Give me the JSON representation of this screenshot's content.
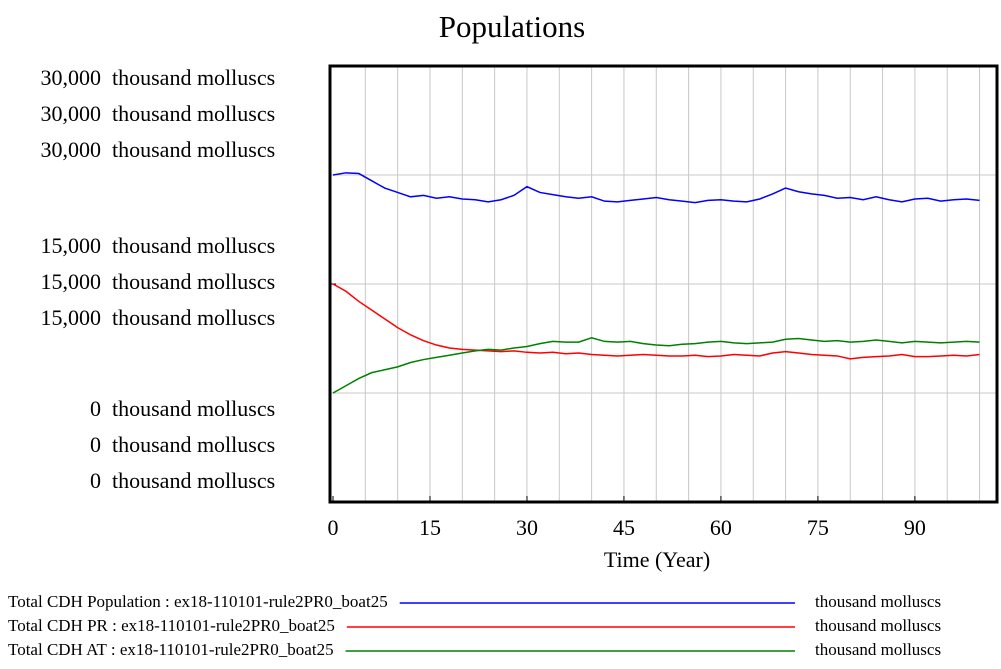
{
  "chart_data": {
    "type": "line",
    "title": "Populations",
    "x_label": "Time (Year)",
    "x": [
      0,
      2,
      4,
      6,
      8,
      10,
      12,
      14,
      16,
      18,
      20,
      22,
      24,
      26,
      28,
      30,
      32,
      34,
      36,
      38,
      40,
      42,
      44,
      46,
      48,
      50,
      52,
      54,
      56,
      58,
      60,
      62,
      64,
      66,
      68,
      70,
      72,
      74,
      76,
      78,
      80,
      82,
      84,
      86,
      88,
      90,
      92,
      94,
      96,
      98,
      100
    ],
    "xlim": [
      0,
      102.7
    ],
    "xticks": [
      0,
      15,
      30,
      45,
      60,
      75,
      90
    ],
    "xgrid": [
      5,
      10,
      15,
      20,
      25,
      30,
      35,
      40,
      45,
      50,
      55,
      60,
      65,
      70,
      75,
      80,
      85,
      90,
      95,
      100
    ],
    "ylim": [
      0,
      30000
    ],
    "yticks": [
      {
        "value": 30000,
        "label": "30,000"
      },
      {
        "value": 15000,
        "label": "15,000"
      },
      {
        "value": 0,
        "label": "0"
      }
    ],
    "ygrid": [
      7500,
      15000,
      22500
    ],
    "series": [
      {
        "name": "Total CDH Population : ex18-110101-rule2PR0_boat25",
        "unit": "thousand molluscs",
        "color": "#0000ff",
        "values": [
          22500,
          22650,
          22600,
          22100,
          21600,
          21300,
          21000,
          21100,
          20900,
          21000,
          20850,
          20800,
          20650,
          20800,
          21100,
          21700,
          21300,
          21150,
          21000,
          20900,
          21000,
          20700,
          20650,
          20750,
          20850,
          20950,
          20800,
          20700,
          20600,
          20750,
          20800,
          20700,
          20650,
          20850,
          21200,
          21600,
          21350,
          21200,
          21100,
          20900,
          20950,
          20800,
          21000,
          20800,
          20650,
          20850,
          20900,
          20700,
          20800,
          20850,
          20750
        ]
      },
      {
        "name": "Total CDH PR : ex18-110101-rule2PR0_boat25",
        "unit": "thousand molluscs",
        "color": "#ff0000",
        "values": [
          15000,
          14500,
          13800,
          13200,
          12600,
          12000,
          11500,
          11100,
          10800,
          10600,
          10500,
          10450,
          10400,
          10350,
          10400,
          10300,
          10250,
          10300,
          10200,
          10250,
          10150,
          10100,
          10050,
          10100,
          10150,
          10100,
          10050,
          10050,
          10100,
          10000,
          10050,
          10150,
          10100,
          10050,
          10250,
          10350,
          10250,
          10150,
          10100,
          10050,
          9850,
          9950,
          10000,
          10050,
          10150,
          10000,
          10000,
          10050,
          10100,
          10050,
          10150
        ]
      },
      {
        "name": "Total CDH AT : ex18-110101-rule2PR0_boat25",
        "unit": "thousand molluscs",
        "color": "#008000",
        "values": [
          7500,
          8000,
          8500,
          8900,
          9100,
          9300,
          9600,
          9800,
          9950,
          10100,
          10250,
          10400,
          10500,
          10450,
          10600,
          10700,
          10900,
          11050,
          11000,
          11000,
          11300,
          11050,
          11000,
          11050,
          10900,
          10800,
          10750,
          10850,
          10900,
          11000,
          11050,
          10950,
          10900,
          10950,
          11000,
          11200,
          11250,
          11150,
          11050,
          11100,
          11000,
          11050,
          11150,
          11050,
          10950,
          11050,
          11000,
          10950,
          11000,
          11050,
          11000
        ]
      }
    ]
  }
}
